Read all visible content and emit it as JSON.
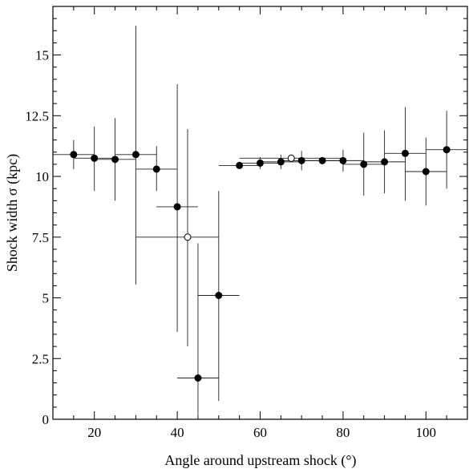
{
  "chart_data": {
    "type": "scatter",
    "xlabel": "Angle around upstream shock (°)",
    "ylabel": "Shock width σ (kpc)",
    "xlim": [
      10,
      110
    ],
    "ylim": [
      0,
      17
    ],
    "xticks": [
      20,
      40,
      60,
      80,
      100
    ],
    "yticks": [
      0,
      2.5,
      5,
      7.5,
      10,
      12.5,
      15
    ],
    "ytick_labels": [
      "0",
      "2.5",
      "5",
      "7.5",
      "10",
      "12.5",
      "15"
    ],
    "grid": false,
    "series": [
      {
        "marker": "filled-circle",
        "color": "#000000",
        "points": [
          {
            "x": 15,
            "y": 10.9,
            "xerr": [
              5,
              5
            ],
            "yerr": [
              0.6,
              0.6
            ]
          },
          {
            "x": 20,
            "y": 10.75,
            "xerr": [
              5,
              5
            ],
            "yerr": [
              1.35,
              1.3
            ]
          },
          {
            "x": 25,
            "y": 10.7,
            "xerr": [
              5,
              5
            ],
            "yerr": [
              1.7,
              1.7
            ]
          },
          {
            "x": 30,
            "y": 10.9,
            "xerr": [
              5,
              5
            ],
            "yerr": [
              5.35,
              5.3
            ]
          },
          {
            "x": 35,
            "y": 10.3,
            "xerr": [
              5,
              5
            ],
            "yerr": [
              0.9,
              0.95
            ]
          },
          {
            "x": 40,
            "y": 8.75,
            "xerr": [
              5,
              5
            ],
            "yerr": [
              5.15,
              5.05
            ]
          },
          {
            "x": 45,
            "y": 1.7,
            "xerr": [
              5,
              5
            ],
            "yerr": [
              1.7,
              5.55
            ]
          },
          {
            "x": 50,
            "y": 5.1,
            "xerr": [
              5,
              5
            ],
            "yerr": [
              4.35,
              4.3
            ]
          },
          {
            "x": 55,
            "y": 10.45,
            "xerr": [
              5,
              5
            ],
            "yerr": [
              0.1,
              0.1
            ]
          },
          {
            "x": 60,
            "y": 10.55,
            "xerr": [
              5,
              5
            ],
            "yerr": [
              0.25,
              0.25
            ]
          },
          {
            "x": 65,
            "y": 10.6,
            "xerr": [
              5,
              5
            ],
            "yerr": [
              0.3,
              0.3
            ]
          },
          {
            "x": 70,
            "y": 10.65,
            "xerr": [
              5,
              5
            ],
            "yerr": [
              0.4,
              0.4
            ]
          },
          {
            "x": 75,
            "y": 10.65,
            "xerr": [
              5,
              5
            ],
            "yerr": [
              0.15,
              0.15
            ]
          },
          {
            "x": 80,
            "y": 10.65,
            "xerr": [
              5,
              5
            ],
            "yerr": [
              0.45,
              0.45
            ]
          },
          {
            "x": 85,
            "y": 10.5,
            "xerr": [
              5,
              5
            ],
            "yerr": [
              1.3,
              1.3
            ]
          },
          {
            "x": 90,
            "y": 10.6,
            "xerr": [
              5,
              5
            ],
            "yerr": [
              1.3,
              1.3
            ]
          },
          {
            "x": 95,
            "y": 10.95,
            "xerr": [
              5,
              5
            ],
            "yerr": [
              1.95,
              1.9
            ]
          },
          {
            "x": 100,
            "y": 10.2,
            "xerr": [
              5,
              5
            ],
            "yerr": [
              1.4,
              1.4
            ]
          },
          {
            "x": 105,
            "y": 11.1,
            "xerr": [
              5,
              5
            ],
            "yerr": [
              1.6,
              1.6
            ]
          }
        ]
      },
      {
        "marker": "open-circle",
        "color": "#000000",
        "points": [
          {
            "x": 42.5,
            "y": 7.5,
            "xerr": [
              12.5,
              7.5
            ],
            "yerr": [
              4.5,
              4.45
            ]
          },
          {
            "x": 67.5,
            "y": 10.75,
            "xerr": [
              12.5,
              12.5
            ],
            "yerr": [
              0.15,
              0.15
            ]
          }
        ]
      }
    ]
  }
}
